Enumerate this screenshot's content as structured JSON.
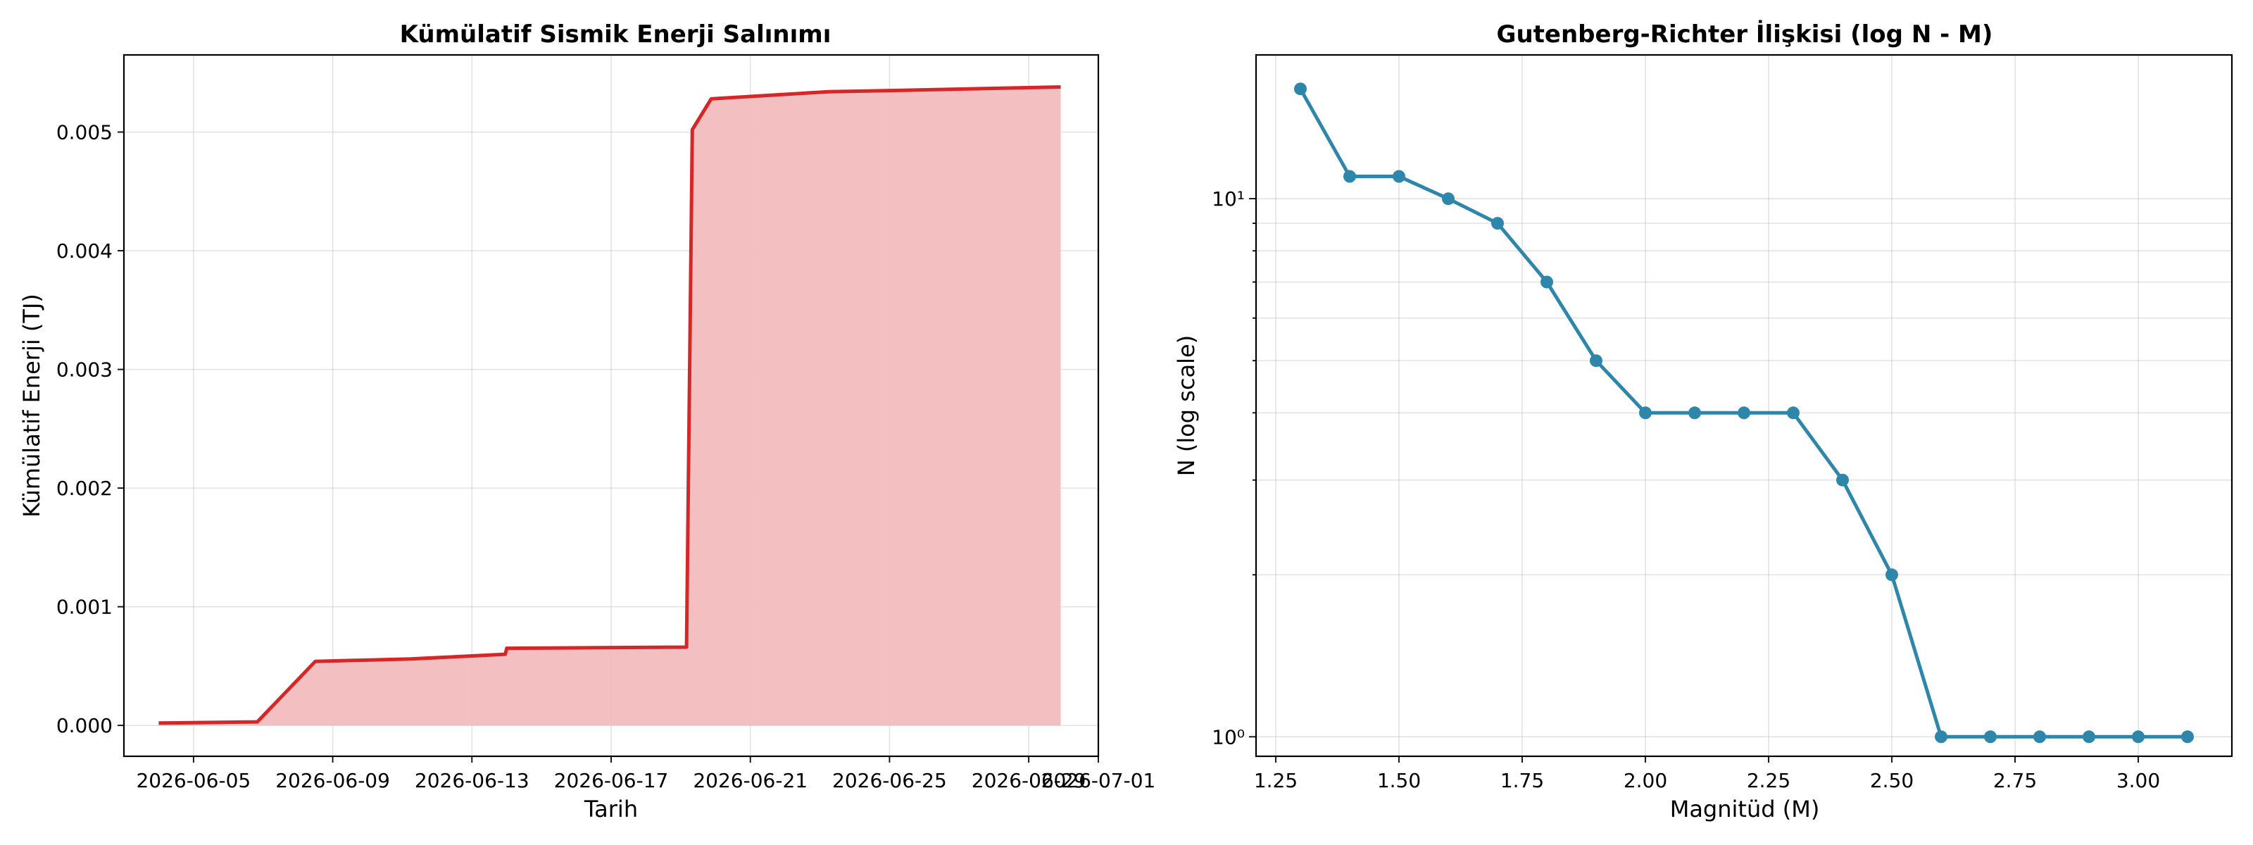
{
  "chart_data": [
    {
      "type": "area",
      "title": "Kümülatif Sismik Enerji Salınımı",
      "xlabel": "Tarih",
      "ylabel": "Kümülatif Enerji (TJ)",
      "x_type": "date",
      "xlim": [
        "2026-06-03T00:00",
        "2026-07-01T00:00"
      ],
      "ylim": [
        -0.00026,
        0.00565
      ],
      "x_ticks": [
        "2026-06-05",
        "2026-06-09",
        "2026-06-13",
        "2026-06-17",
        "2026-06-21",
        "2026-06-25",
        "2026-06-29",
        "2026-07-01"
      ],
      "y_ticks": [
        0.0,
        0.001,
        0.002,
        0.003,
        0.004,
        0.005
      ],
      "y_tick_labels": [
        "0.000",
        "0.001",
        "0.002",
        "0.003",
        "0.004",
        "0.005"
      ],
      "grid": true,
      "line_color": "#d62728",
      "fill_color": "#f2bcbd",
      "series": [
        {
          "x": [
            "2026-06-04T00:00",
            "2026-06-06T20:00",
            "2026-06-08T12:00",
            "2026-06-11T06:00",
            "2026-06-13T23:00",
            "2026-06-14T00:00",
            "2026-06-19T04:00",
            "2026-06-19T08:00",
            "2026-06-19T21:00",
            "2026-06-23T06:00",
            "2026-06-25T00:00",
            "2026-06-29T22:00"
          ],
          "values": [
            2e-05,
            3e-05,
            0.00054,
            0.00056,
            0.0006,
            0.00065,
            0.00066,
            0.00502,
            0.00528,
            0.00534,
            0.00535,
            0.00538
          ]
        }
      ]
    },
    {
      "type": "line",
      "title": "Gutenberg-Richter İlişkisi (log N - M)",
      "xlabel": "Magnitüd (M)",
      "ylabel": "N (log scale)",
      "x_scale": "linear",
      "y_scale": "log",
      "xlim": [
        1.21,
        3.19
      ],
      "ylim": [
        0.92,
        18.5
      ],
      "x_ticks": [
        1.25,
        1.5,
        1.75,
        2.0,
        2.25,
        2.5,
        2.75,
        3.0
      ],
      "x_tick_labels": [
        "1.25",
        "1.50",
        "1.75",
        "2.00",
        "2.25",
        "2.50",
        "2.75",
        "3.00"
      ],
      "y_major_ticks": [
        1,
        10
      ],
      "y_tick_labels": [
        "10⁰",
        "10¹"
      ],
      "y_minor_ticks": [
        2,
        3,
        4,
        5,
        6,
        7,
        8,
        9
      ],
      "grid": true,
      "line_color": "#2e86ab",
      "series": [
        {
          "x": [
            1.3,
            1.4,
            1.5,
            1.6,
            1.7,
            1.8,
            1.9,
            2.0,
            2.1,
            2.2,
            2.3,
            2.4,
            2.5,
            2.6,
            2.7,
            2.8,
            2.9,
            3.0,
            3.1
          ],
          "values": [
            16,
            11,
            11,
            10,
            9,
            7,
            5,
            4,
            4,
            4,
            4,
            3,
            2,
            1,
            1,
            1,
            1,
            1,
            1
          ]
        }
      ]
    }
  ]
}
